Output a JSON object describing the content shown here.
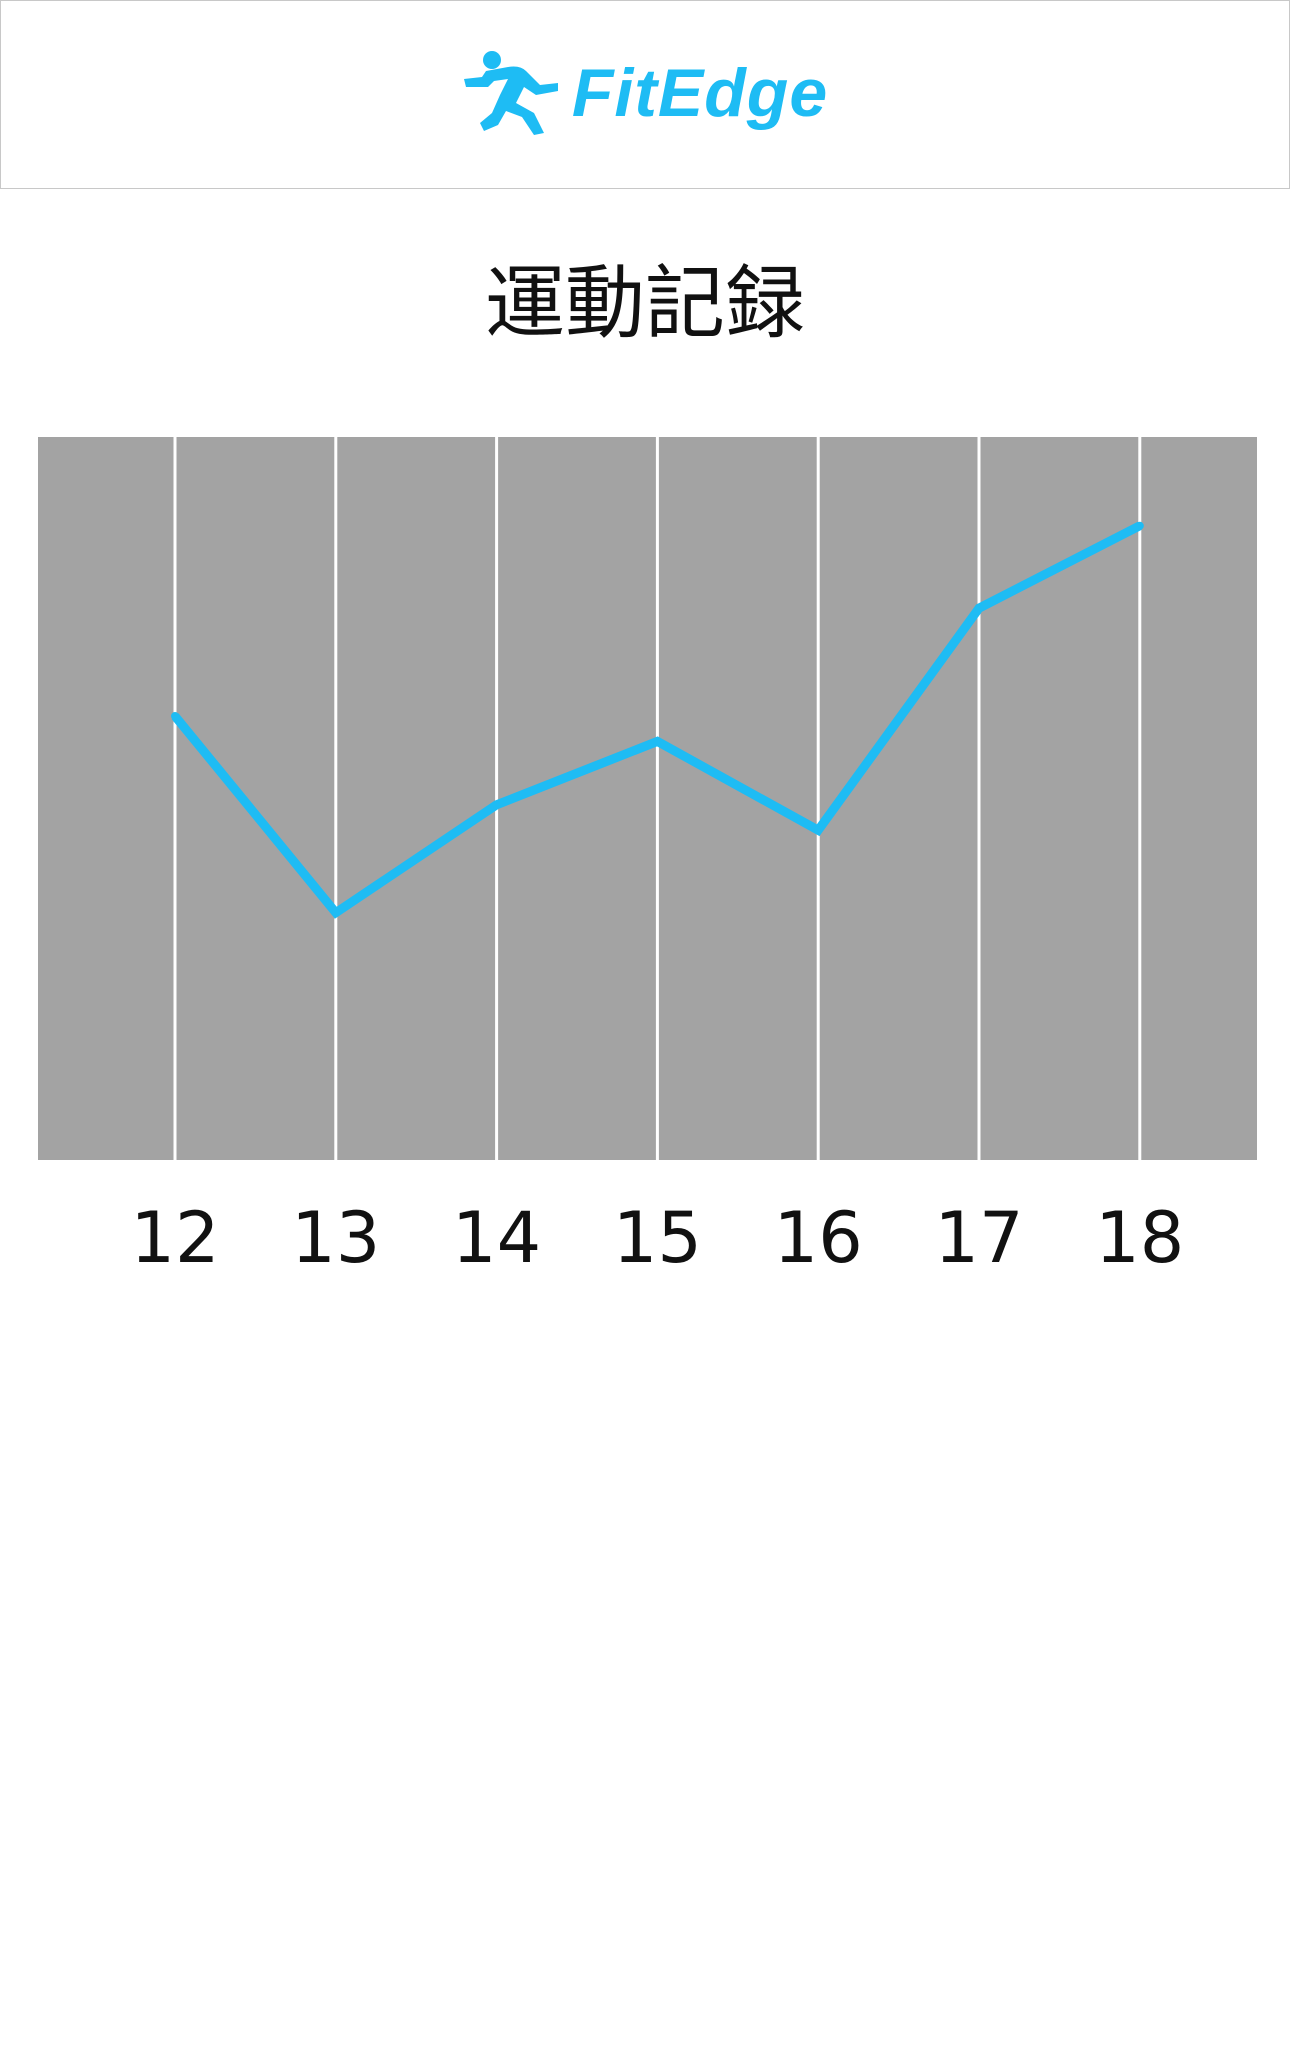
{
  "header": {
    "brand_name": "FitEdge",
    "brand_icon": "running-person-icon",
    "accent_color": "#1ebcf4"
  },
  "page": {
    "title": "運動記録"
  },
  "chart_data": {
    "type": "line",
    "title": "運動記録",
    "categories": [
      "12",
      "13",
      "14",
      "15",
      "16",
      "17",
      "18"
    ],
    "series": [
      {
        "values": [
          60,
          29,
          46,
          56,
          42,
          77,
          90
        ]
      }
    ],
    "ylim": [
      -10,
      104
    ],
    "grid": "vertical lines at each category",
    "line_color": "#1ebcf4",
    "plot_background": "#a3a3a3",
    "gridline_color": "#ffffff"
  }
}
